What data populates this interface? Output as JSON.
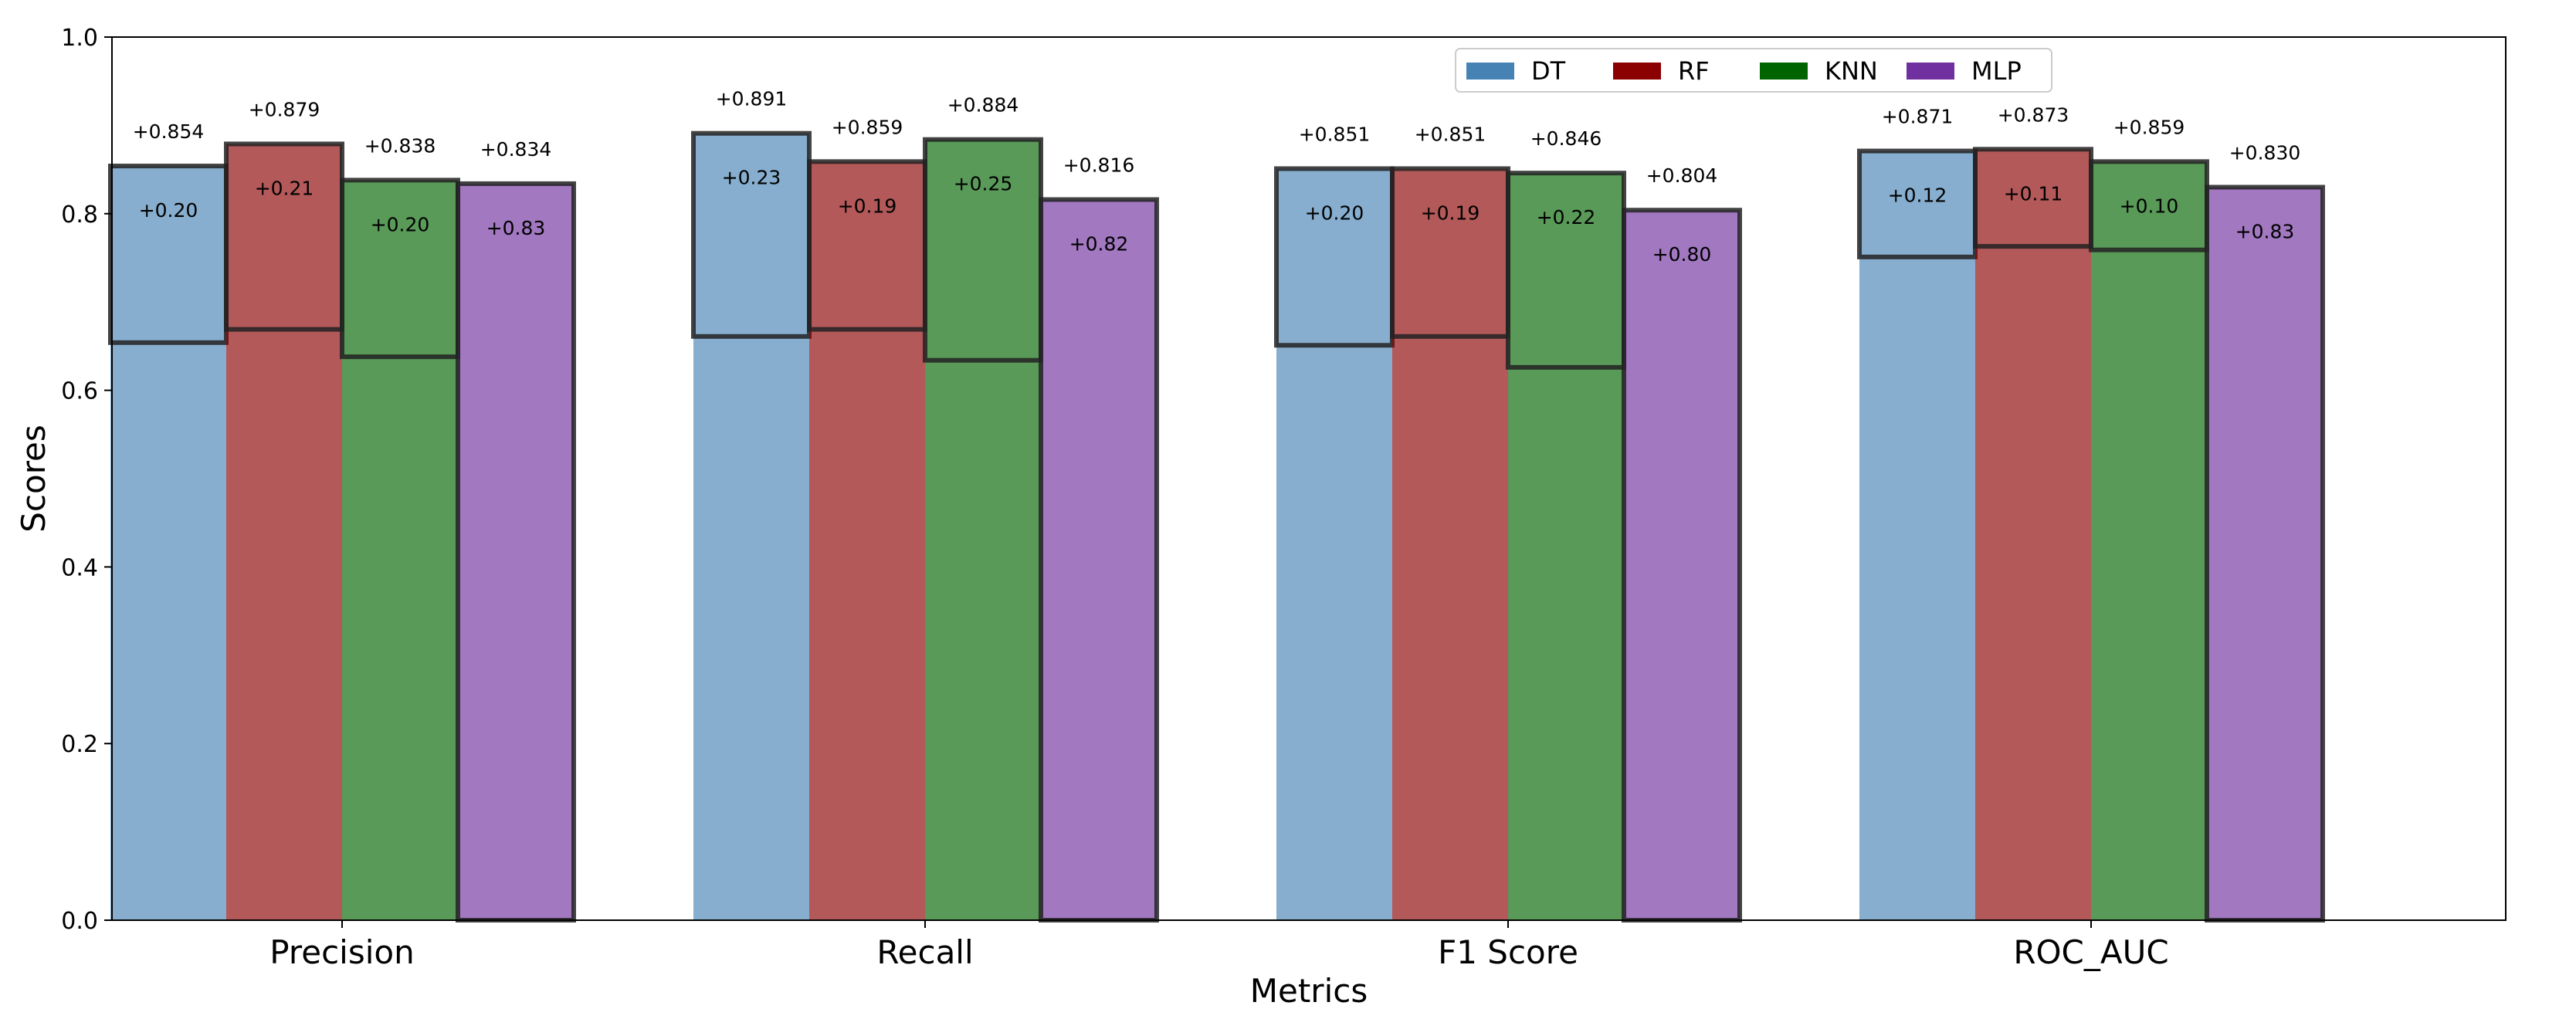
{
  "chart_data": {
    "type": "bar",
    "title": "",
    "xlabel": "Metrics",
    "ylabel": "Scores",
    "ylim": [
      0,
      1.0
    ],
    "yticks": [
      "0.0",
      "0.2",
      "0.4",
      "0.6",
      "0.8",
      "1.0"
    ],
    "categories": [
      "Precision",
      "Recall",
      "F1 Score",
      "ROC_AUC"
    ],
    "legend_position": "top-center",
    "series": [
      {
        "name": "DT",
        "color": "#4682b4",
        "values": [
          0.854,
          0.891,
          0.851,
          0.871
        ],
        "base_values": [
          0.654,
          0.661,
          0.651,
          0.751
        ],
        "top_labels": [
          "+0.854",
          "+0.891",
          "+0.851",
          "+0.871"
        ],
        "inner_labels": [
          "+0.20",
          "+0.23",
          "+0.20",
          "+0.12"
        ]
      },
      {
        "name": "RF",
        "color": "#8b0000",
        "values": [
          0.879,
          0.859,
          0.851,
          0.873
        ],
        "base_values": [
          0.669,
          0.669,
          0.661,
          0.763
        ],
        "top_labels": [
          "+0.879",
          "+0.859",
          "+0.851",
          "+0.873"
        ],
        "inner_labels": [
          "+0.21",
          "+0.19",
          "+0.19",
          "+0.11"
        ]
      },
      {
        "name": "KNN",
        "color": "#006400",
        "values": [
          0.838,
          0.884,
          0.846,
          0.859
        ],
        "base_values": [
          0.638,
          0.634,
          0.626,
          0.759
        ],
        "top_labels": [
          "+0.838",
          "+0.884",
          "+0.846",
          "+0.859"
        ],
        "inner_labels": [
          "+0.20",
          "+0.25",
          "+0.22",
          "+0.10"
        ]
      },
      {
        "name": "MLP",
        "color": "#7030a0",
        "values": [
          0.834,
          0.816,
          0.804,
          0.83
        ],
        "base_values": [
          0.0,
          0.0,
          0.0,
          0.0
        ],
        "top_labels": [
          "+0.834",
          "+0.816",
          "+0.804",
          "+0.830"
        ],
        "inner_labels": [
          "+0.83",
          "+0.82",
          "+0.80",
          "+0.83"
        ]
      }
    ]
  }
}
